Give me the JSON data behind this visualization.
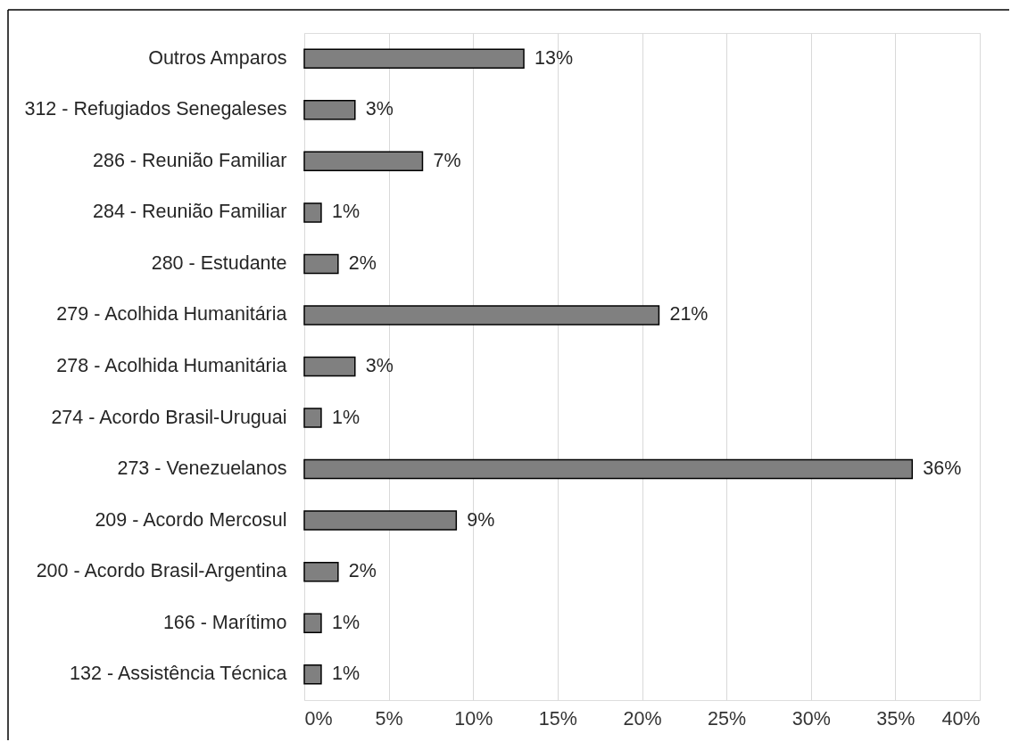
{
  "chart_data": {
    "type": "bar",
    "orientation": "horizontal",
    "categories": [
      "Outros Amparos",
      "312 - Refugiados Senegaleses",
      "286 - Reunião Familiar",
      "284 - Reunião Familiar",
      "280 - Estudante",
      "279 - Acolhida Humanitária",
      "278 - Acolhida Humanitária",
      "274 - Acordo Brasil-Uruguai",
      "273 - Venezuelanos",
      "209 - Acordo Mercosul",
      "200 - Acordo Brasil-Argentina",
      "166 - Marítimo",
      "132 - Assistência Técnica"
    ],
    "values": [
      13,
      3,
      7,
      1,
      2,
      21,
      3,
      1,
      36,
      9,
      2,
      1,
      1
    ],
    "value_labels": [
      "13%",
      "3%",
      "7%",
      "1%",
      "2%",
      "21%",
      "3%",
      "1%",
      "36%",
      "9%",
      "2%",
      "1%",
      "1%"
    ],
    "color": "#808080",
    "xlim": [
      0,
      40
    ],
    "xticks": [
      {
        "value": 0,
        "label": "0%"
      },
      {
        "value": 5,
        "label": "5%"
      },
      {
        "value": 10,
        "label": "10%"
      },
      {
        "value": 15,
        "label": "15%"
      },
      {
        "value": 20,
        "label": "20%"
      },
      {
        "value": 25,
        "label": "25%"
      },
      {
        "value": 30,
        "label": "30%"
      },
      {
        "value": 35,
        "label": "35%"
      },
      {
        "value": 40,
        "label": "40%"
      }
    ],
    "grid": "x"
  }
}
